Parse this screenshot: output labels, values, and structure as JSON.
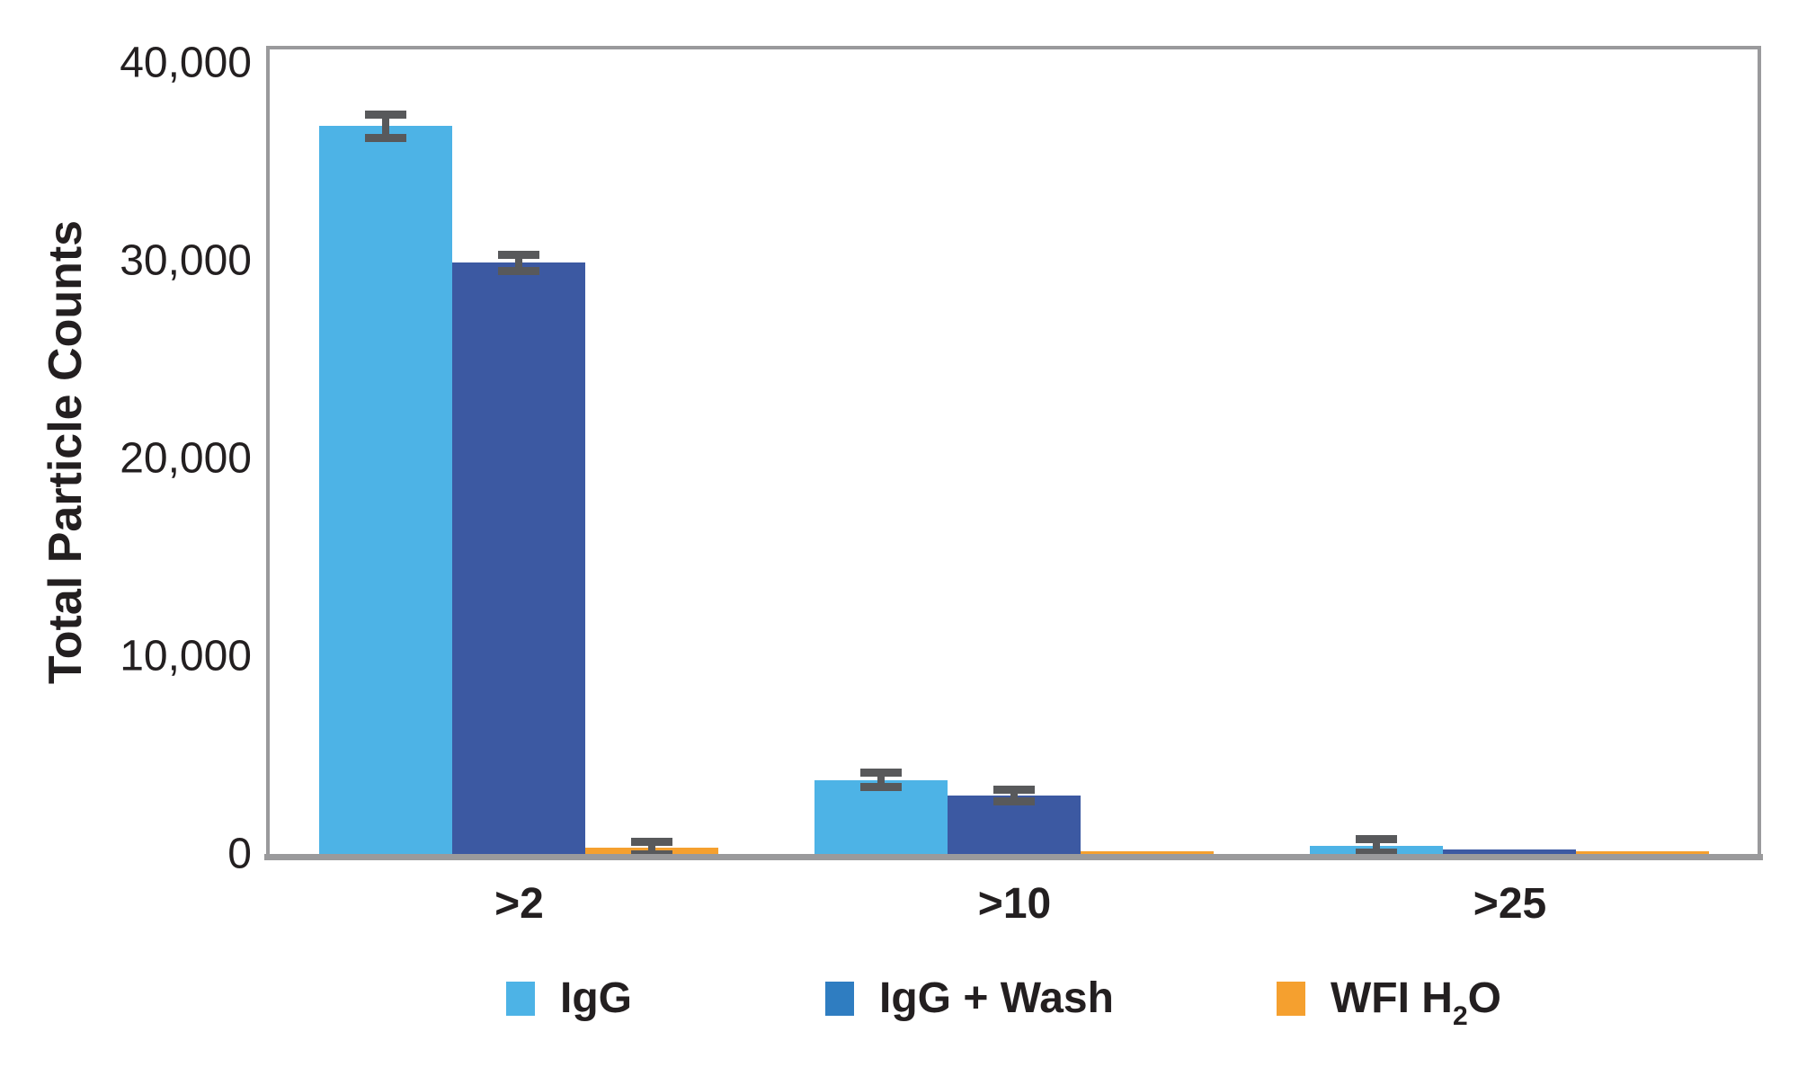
{
  "figure": {
    "background": "#ffffff",
    "border_color": "#9a9a9c",
    "text_color": "#231f20",
    "errorbar_color": "#58595b"
  },
  "chart_data": {
    "type": "bar",
    "title": "",
    "xlabel": "",
    "ylabel": "Total Particle Counts",
    "categories": [
      ">2",
      ">10",
      ">25"
    ],
    "ylim": [
      0,
      40000
    ],
    "yticks": [
      0,
      10000,
      20000,
      30000,
      40000
    ],
    "ytick_labels": [
      "0",
      "10,000",
      "20,000",
      "30,000",
      "40,000"
    ],
    "grid": false,
    "legend_position": "bottom",
    "error_bars": true,
    "series": [
      {
        "name": "IgG",
        "color": "#4db3e6",
        "legend_swatch_color": "#4db3e6",
        "values": [
          36800,
          3750,
          400
        ],
        "errors": [
          600,
          350,
          350
        ]
      },
      {
        "name": "IgG + Wash",
        "color": "#3c59a2",
        "legend_swatch_color": "#2f7dc1",
        "values": [
          29900,
          2950,
          250
        ],
        "errors": [
          400,
          300,
          0
        ]
      },
      {
        "name": "WFI H2O",
        "label_parts": {
          "pre": "WFI H",
          "sub": "2",
          "post": "O"
        },
        "color": "#f5a02f",
        "legend_swatch_color": "#f5a02f",
        "values": [
          300,
          150,
          120
        ],
        "errors": [
          300,
          0,
          0
        ]
      }
    ]
  }
}
